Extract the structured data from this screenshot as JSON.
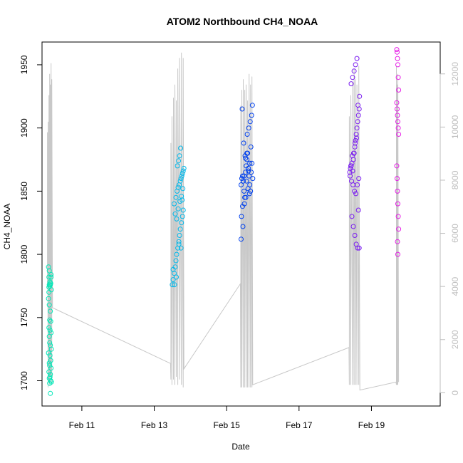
{
  "chart_data": {
    "type": "scatter",
    "title": "ATOM2 Northbound CH4_NOAA",
    "xlabel": "Date",
    "ylabel": "CH4_NOAA",
    "x_ticks": [
      "Feb 11",
      "Feb 13",
      "Feb 15",
      "Feb 17",
      "Feb 19"
    ],
    "x_tick_days": [
      11,
      13,
      15,
      17,
      19
    ],
    "xlim_days": [
      9.9,
      20.9
    ],
    "ylim": [
      1680,
      1968
    ],
    "y_ticks": [
      1700,
      1750,
      1800,
      1850,
      1900,
      1950
    ],
    "y2lim": [
      -500,
      13200
    ],
    "y2_ticks": [
      0,
      2000,
      4000,
      6000,
      8000,
      10000,
      12000
    ],
    "grid": false,
    "series": [
      {
        "kind": "points",
        "color_scale": "cyan-to-magenta along flight time",
        "colors": [
          "#00e8b8",
          "#00b8ea",
          "#0040ee",
          "#7a1cf0",
          "#e61ee6"
        ],
        "flights": [
          {
            "x": [
              10.08,
              10.1,
              10.09,
              10.12,
              10.13,
              10.11,
              10.14,
              10.15,
              10.09,
              10.1,
              10.12,
              10.16,
              10.08,
              10.1,
              10.13,
              10.11,
              10.14,
              10.09,
              10.12,
              10.15,
              10.1,
              10.11,
              10.13,
              10.16,
              10.08,
              10.12,
              10.14,
              10.1,
              10.11,
              10.15,
              10.09,
              10.13,
              10.12,
              10.1,
              10.14,
              10.11,
              10.16,
              10.13,
              10.09,
              10.15
            ],
            "y": [
              1790,
              1787,
              1782,
              1778,
              1776,
              1775,
              1777,
              1784,
              1774,
              1776,
              1778,
              1772,
              1765,
              1760,
              1755,
              1748,
              1747,
              1742,
              1740,
              1738,
              1735,
              1730,
              1728,
              1725,
              1722,
              1720,
              1716,
              1714,
              1712,
              1710,
              1707,
              1705,
              1703,
              1702,
              1700,
              1698,
              1699,
              1690,
              1770,
              1782
            ]
          },
          {
            "x": [
              13.5,
              13.52,
              13.55,
              13.58,
              13.6,
              13.62,
              13.65,
              13.68,
              13.7,
              13.72,
              13.75,
              13.78,
              13.8,
              13.55,
              13.6,
              13.63,
              13.66,
              13.69,
              13.72,
              13.74,
              13.76,
              13.78,
              13.8,
              13.82,
              13.64,
              13.67,
              13.7,
              13.73,
              13.58,
              13.62,
              13.66,
              13.71,
              13.75,
              13.79,
              13.52,
              13.56,
              13.61,
              13.68,
              13.74,
              13.77
            ],
            "y": [
              1776,
              1780,
              1785,
              1790,
              1795,
              1800,
              1805,
              1810,
              1815,
              1820,
              1825,
              1830,
              1835,
              1840,
              1845,
              1850,
              1853,
              1855,
              1858,
              1860,
              1862,
              1864,
              1866,
              1868,
              1870,
              1874,
              1878,
              1884,
              1832,
              1828,
              1836,
              1842,
              1846,
              1852,
              1788,
              1776,
              1782,
              1808,
              1805,
              1843
            ]
          },
          {
            "x": [
              15.4,
              15.42,
              15.44,
              15.46,
              15.48,
              15.5,
              15.52,
              15.54,
              15.56,
              15.58,
              15.6,
              15.62,
              15.64,
              15.66,
              15.68,
              15.7,
              15.72,
              15.41,
              15.45,
              15.49,
              15.53,
              15.57,
              15.61,
              15.65,
              15.69,
              15.43,
              15.47,
              15.51,
              15.55,
              15.59,
              15.63,
              15.67,
              15.71,
              15.4,
              15.44,
              15.48,
              15.52,
              15.56,
              15.6,
              15.64
            ],
            "y": [
              1855,
              1860,
              1862,
              1858,
              1850,
              1845,
              1865,
              1870,
              1875,
              1880,
              1868,
              1862,
              1855,
              1850,
              1865,
              1872,
              1860,
              1830,
              1822,
              1840,
              1845,
              1895,
              1900,
              1905,
              1910,
              1915,
              1888,
              1878,
              1858,
              1852,
              1848,
              1885,
              1918,
              1812,
              1838,
              1862,
              1876,
              1880,
              1866,
              1872
            ]
          },
          {
            "x": [
              18.4,
              18.42,
              18.44,
              18.46,
              18.48,
              18.5,
              18.52,
              18.54,
              18.56,
              18.58,
              18.6,
              18.62,
              18.64,
              18.66,
              18.41,
              18.45,
              18.49,
              18.53,
              18.57,
              18.61,
              18.65,
              18.43,
              18.47,
              18.51,
              18.55,
              18.59,
              18.63,
              18.67,
              18.44,
              18.48,
              18.52,
              18.56,
              18.6,
              18.64,
              18.46,
              18.5,
              18.54,
              18.58,
              18.62,
              18.66
            ],
            "y": [
              1865,
              1868,
              1870,
              1872,
              1866,
              1875,
              1880,
              1885,
              1890,
              1895,
              1900,
              1905,
              1910,
              1915,
              1862,
              1858,
              1855,
              1850,
              1848,
              1855,
              1860,
              1870,
              1878,
              1880,
              1888,
              1892,
              1918,
              1925,
              1935,
              1940,
              1945,
              1950,
              1955,
              1835,
              1830,
              1822,
              1815,
              1808,
              1805,
              1805
            ]
          },
          {
            "x": [
              19.7,
              19.71,
              19.72,
              19.73,
              19.74,
              19.75,
              19.7,
              19.71,
              19.72,
              19.73,
              19.74,
              19.75,
              19.7,
              19.71,
              19.72,
              19.73,
              19.74,
              19.75,
              19.72,
              19.73
            ],
            "y": [
              1962,
              1960,
              1955,
              1950,
              1940,
              1930,
              1920,
              1915,
              1910,
              1905,
              1900,
              1895,
              1870,
              1860,
              1850,
              1840,
              1830,
              1820,
              1810,
              1800
            ]
          }
        ]
      },
      {
        "kind": "altitude-line",
        "color": "#c8c8c8",
        "axis": "right",
        "x": [
          10.05,
          10.05,
          10.07,
          10.07,
          10.09,
          10.09,
          10.11,
          10.11,
          10.13,
          10.13,
          10.15,
          10.15,
          10.17,
          10.17,
          10.19,
          13.45,
          13.46,
          13.46,
          13.49,
          13.49,
          13.53,
          13.53,
          13.57,
          13.57,
          13.61,
          13.61,
          13.65,
          13.65,
          13.7,
          13.7,
          13.75,
          13.75,
          13.8,
          13.8,
          13.82,
          15.38,
          15.39,
          15.39,
          15.42,
          15.42,
          15.46,
          15.46,
          15.5,
          15.5,
          15.54,
          15.54,
          15.58,
          15.58,
          15.62,
          15.62,
          15.66,
          15.66,
          15.7,
          15.7,
          15.72,
          18.38,
          18.39,
          18.39,
          18.43,
          18.43,
          18.48,
          18.48,
          18.52,
          18.52,
          18.56,
          18.56,
          18.6,
          18.6,
          18.65,
          18.65,
          18.68,
          19.68,
          19.69,
          19.69,
          19.71,
          19.71,
          19.73,
          19.73,
          19.75
        ],
        "y": [
          4000,
          9800,
          200,
          10200,
          400,
          11200,
          300,
          12000,
          600,
          11600,
          500,
          12400,
          300,
          11800,
          3200,
          1100,
          500,
          9400,
          300,
          10400,
          500,
          11100,
          300,
          11600,
          600,
          11000,
          300,
          12200,
          500,
          12600,
          300,
          12800,
          200,
          12600,
          900,
          4100,
          200,
          10800,
          200,
          11400,
          200,
          11800,
          200,
          11400,
          200,
          11600,
          200,
          11000,
          200,
          12000,
          200,
          11600,
          200,
          11900,
          300,
          1700,
          300,
          10400,
          300,
          11200,
          300,
          11700,
          300,
          12200,
          300,
          11800,
          300,
          11600,
          300,
          12300,
          100,
          400,
          300,
          12300,
          300,
          11600,
          300,
          12000,
          400
        ]
      }
    ]
  }
}
